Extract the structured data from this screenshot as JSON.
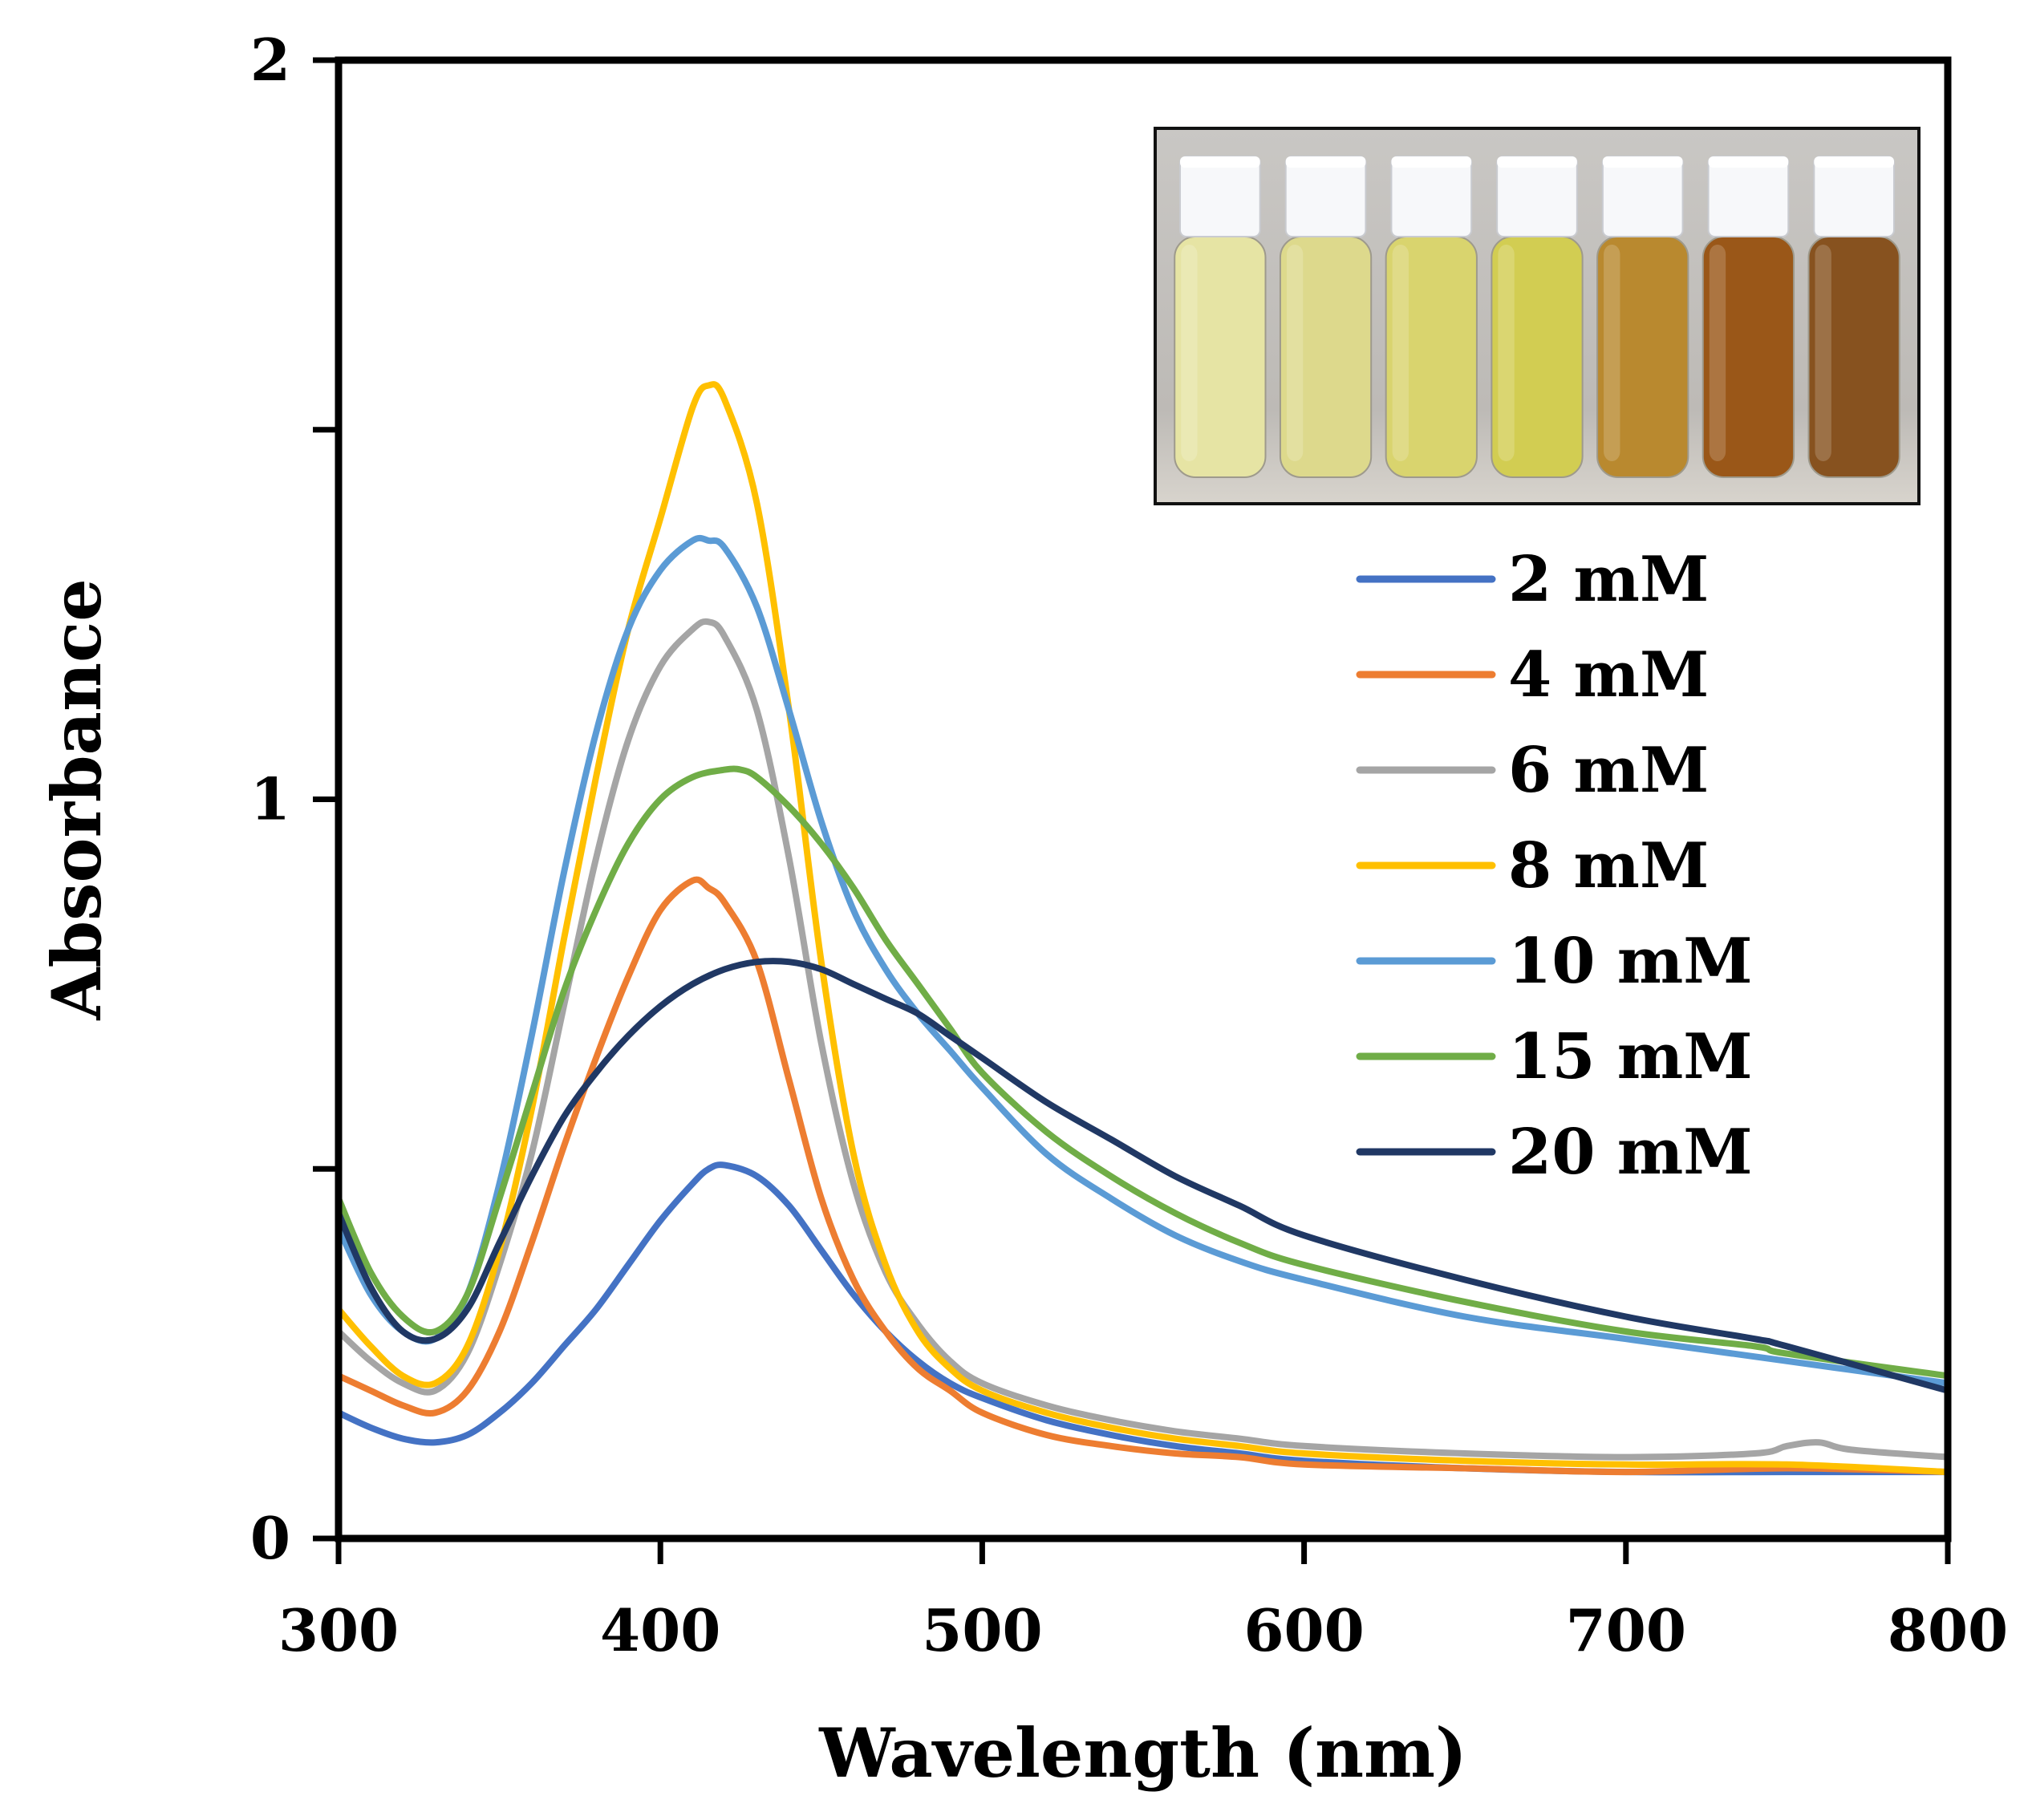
{
  "chart_data": {
    "type": "line",
    "title": "",
    "xlabel": "Wavelength (nm)",
    "ylabel": "Absorbance",
    "xlim": [
      300,
      800
    ],
    "ylim": [
      0,
      2
    ],
    "xticks": [
      300,
      400,
      500,
      600,
      700,
      800
    ],
    "xtick_labels": [
      "300",
      "400",
      "500",
      "600",
      "700",
      "800"
    ],
    "yticks": [
      0,
      0.5,
      1,
      1.5,
      2
    ],
    "ytick_labels": [
      "0",
      "",
      "1",
      "",
      "2"
    ],
    "grid": false,
    "legend_position": "right",
    "inset": {
      "type": "photo",
      "description_icon": "vials-photo",
      "position": "top-right",
      "vial_colors": [
        "#e6e4a4",
        "#ddd98c",
        "#d9d46e",
        "#d2cd52",
        "#b9892f",
        "#9a5718",
        "#87521f"
      ]
    },
    "series": [
      {
        "name": "2 mM",
        "color": "#4472c4",
        "x": [
          300,
          310,
          320,
          330,
          340,
          350,
          360,
          370,
          380,
          390,
          400,
          410,
          415,
          420,
          430,
          440,
          450,
          460,
          470,
          480,
          490,
          500,
          520,
          540,
          560,
          580,
          600,
          650,
          700,
          750,
          800
        ],
        "y": [
          0.17,
          0.15,
          0.135,
          0.13,
          0.14,
          0.17,
          0.21,
          0.26,
          0.31,
          0.37,
          0.43,
          0.48,
          0.5,
          0.505,
          0.49,
          0.45,
          0.39,
          0.33,
          0.28,
          0.24,
          0.21,
          0.19,
          0.16,
          0.14,
          0.125,
          0.115,
          0.105,
          0.095,
          0.09,
          0.09,
          0.09
        ]
      },
      {
        "name": "4 mM",
        "color": "#ed7d31",
        "x": [
          300,
          310,
          320,
          330,
          340,
          350,
          360,
          370,
          380,
          390,
          400,
          410,
          415,
          420,
          430,
          440,
          450,
          460,
          470,
          480,
          490,
          500,
          520,
          540,
          560,
          580,
          600,
          650,
          700,
          750,
          800
        ],
        "y": [
          0.22,
          0.2,
          0.18,
          0.17,
          0.2,
          0.28,
          0.4,
          0.53,
          0.65,
          0.76,
          0.85,
          0.89,
          0.88,
          0.86,
          0.78,
          0.62,
          0.46,
          0.35,
          0.28,
          0.23,
          0.2,
          0.17,
          0.14,
          0.125,
          0.115,
          0.11,
          0.1,
          0.095,
          0.09,
          0.095,
          0.09
        ]
      },
      {
        "name": "6 mM",
        "color": "#a5a5a5",
        "x": [
          300,
          310,
          320,
          330,
          340,
          350,
          360,
          370,
          380,
          390,
          400,
          410,
          415,
          420,
          430,
          440,
          450,
          460,
          470,
          480,
          490,
          500,
          520,
          540,
          560,
          580,
          600,
          650,
          700,
          740,
          750,
          760,
          770,
          800
        ],
        "y": [
          0.28,
          0.24,
          0.21,
          0.2,
          0.25,
          0.37,
          0.52,
          0.72,
          0.92,
          1.08,
          1.18,
          1.23,
          1.24,
          1.22,
          1.12,
          0.92,
          0.67,
          0.48,
          0.36,
          0.29,
          0.24,
          0.21,
          0.18,
          0.16,
          0.145,
          0.135,
          0.125,
          0.115,
          0.11,
          0.115,
          0.125,
          0.13,
          0.12,
          0.11
        ]
      },
      {
        "name": "8 mM",
        "color": "#ffc000",
        "x": [
          300,
          310,
          320,
          330,
          340,
          350,
          360,
          370,
          380,
          390,
          400,
          410,
          415,
          420,
          430,
          440,
          450,
          460,
          470,
          480,
          490,
          500,
          520,
          540,
          560,
          580,
          600,
          650,
          700,
          750,
          800
        ],
        "y": [
          0.31,
          0.26,
          0.22,
          0.21,
          0.26,
          0.39,
          0.58,
          0.81,
          1.03,
          1.23,
          1.38,
          1.53,
          1.56,
          1.54,
          1.4,
          1.12,
          0.78,
          0.52,
          0.37,
          0.28,
          0.23,
          0.2,
          0.17,
          0.15,
          0.135,
          0.125,
          0.115,
          0.105,
          0.1,
          0.1,
          0.09
        ]
      },
      {
        "name": "10 mM",
        "color": "#5b9bd5",
        "x": [
          300,
          310,
          320,
          330,
          340,
          350,
          360,
          370,
          380,
          390,
          400,
          410,
          415,
          420,
          430,
          440,
          450,
          460,
          470,
          480,
          490,
          500,
          520,
          540,
          560,
          580,
          600,
          650,
          700,
          750,
          800
        ],
        "y": [
          0.42,
          0.33,
          0.28,
          0.27,
          0.33,
          0.48,
          0.68,
          0.9,
          1.09,
          1.23,
          1.31,
          1.35,
          1.35,
          1.34,
          1.26,
          1.12,
          0.97,
          0.85,
          0.77,
          0.71,
          0.66,
          0.61,
          0.52,
          0.46,
          0.41,
          0.375,
          0.35,
          0.3,
          0.27,
          0.24,
          0.21
        ]
      },
      {
        "name": "15 mM",
        "color": "#70ad47",
        "x": [
          300,
          310,
          320,
          330,
          340,
          350,
          360,
          370,
          380,
          390,
          400,
          410,
          420,
          425,
          430,
          440,
          450,
          460,
          470,
          480,
          490,
          500,
          520,
          540,
          560,
          580,
          600,
          650,
          700,
          740,
          750,
          800
        ],
        "y": [
          0.46,
          0.36,
          0.3,
          0.28,
          0.33,
          0.46,
          0.6,
          0.74,
          0.85,
          0.94,
          1.0,
          1.03,
          1.04,
          1.04,
          1.03,
          0.99,
          0.94,
          0.88,
          0.81,
          0.75,
          0.69,
          0.63,
          0.55,
          0.49,
          0.44,
          0.4,
          0.37,
          0.32,
          0.28,
          0.26,
          0.25,
          0.22
        ]
      },
      {
        "name": "20 mM",
        "color": "#203864",
        "x": [
          300,
          310,
          320,
          330,
          340,
          350,
          360,
          370,
          380,
          390,
          400,
          410,
          420,
          430,
          440,
          450,
          460,
          470,
          480,
          490,
          500,
          520,
          540,
          560,
          580,
          600,
          650,
          700,
          740,
          750,
          800
        ],
        "y": [
          0.44,
          0.34,
          0.28,
          0.27,
          0.31,
          0.4,
          0.49,
          0.57,
          0.63,
          0.68,
          0.72,
          0.75,
          0.77,
          0.78,
          0.78,
          0.77,
          0.75,
          0.73,
          0.71,
          0.68,
          0.65,
          0.59,
          0.54,
          0.49,
          0.45,
          0.41,
          0.35,
          0.3,
          0.27,
          0.26,
          0.2
        ]
      }
    ]
  }
}
